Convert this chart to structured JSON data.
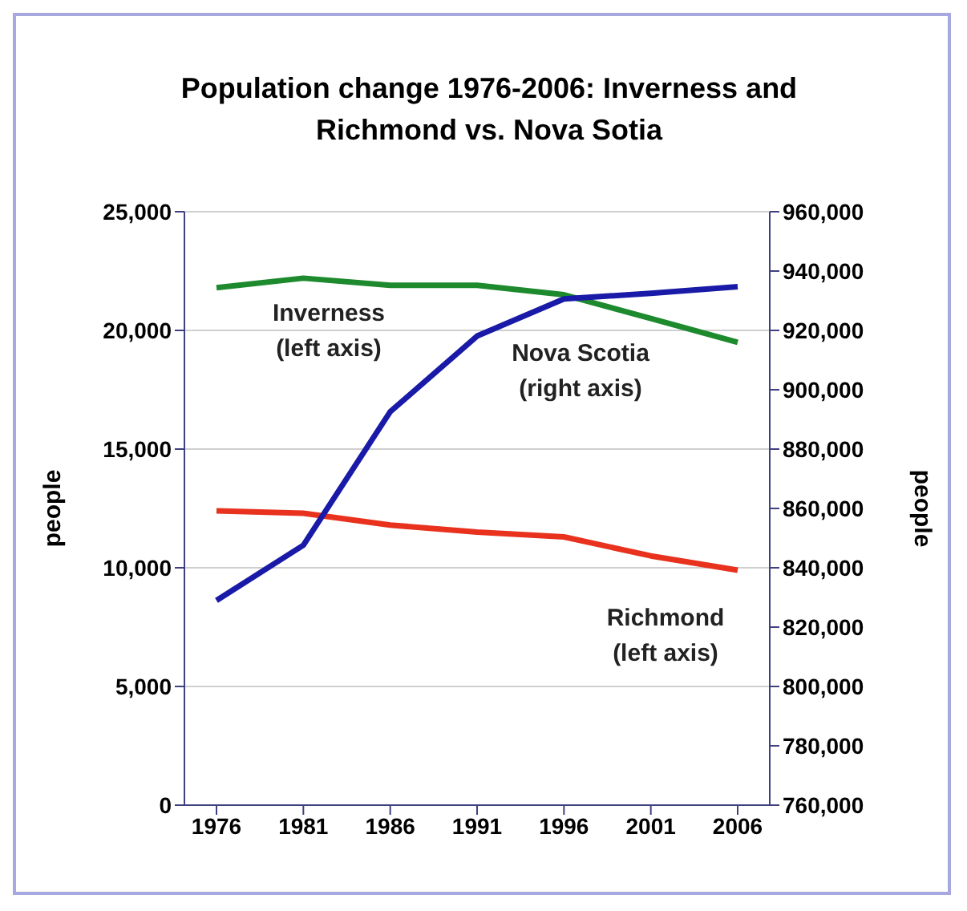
{
  "chart_data": {
    "type": "line",
    "title": "Population change 1976-2006: Inverness and Richmond vs. Nova Sotia",
    "ylabel": "people",
    "y2label": "people",
    "categories": [
      "1976",
      "1981",
      "1986",
      "1991",
      "1996",
      "2001",
      "2006"
    ],
    "series": [
      {
        "name": "Inverness (left axis)",
        "color": "#1e8a2e",
        "values": [
          21800,
          22200,
          21900,
          21900,
          21500,
          20500,
          19500
        ]
      },
      {
        "name": "Richmond (left axis)",
        "color": "#e8321e",
        "values": [
          12400,
          12300,
          11800,
          11500,
          11300,
          10500,
          9900
        ]
      },
      {
        "name": "Nova Scotia (right axis)",
        "color": "#1a1aa8",
        "axis": "y2",
        "values": [
          829000,
          847600,
          892600,
          918100,
          930600,
          932500,
          934700
        ]
      }
    ],
    "ylim": [
      0,
      25000
    ],
    "yticks": [
      0,
      {
        "value": 5000,
        "label": "5,000"
      },
      {
        "value": 10000,
        "label": "10,000"
      },
      {
        "value": 15000,
        "label": "15,000"
      },
      {
        "value": 20000,
        "label": "20,000"
      },
      {
        "value": 25000,
        "label": "25,000"
      }
    ],
    "y2lim": [
      760000,
      960000
    ],
    "y2ticks": [
      {
        "value": 760000,
        "label": "760,000"
      },
      {
        "value": 780000,
        "label": "780,000"
      },
      {
        "value": 800000,
        "label": "800,000"
      },
      {
        "value": 820000,
        "label": "820,000"
      },
      {
        "value": 840000,
        "label": "840,000"
      },
      {
        "value": 860000,
        "label": "860,000"
      },
      {
        "value": 880000,
        "label": "880,000"
      },
      {
        "value": 900000,
        "label": "900,000"
      },
      {
        "value": 920000,
        "label": "920,000"
      },
      {
        "value": 940000,
        "label": "940,000"
      },
      {
        "value": 960000,
        "label": "960,000"
      }
    ],
    "grid": "y",
    "legend": false,
    "marker": "none",
    "line_style": "solid"
  }
}
